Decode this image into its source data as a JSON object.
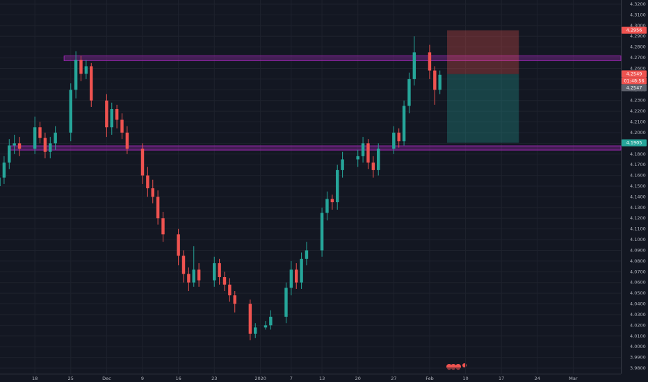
{
  "chart_data": {
    "type": "candlestick",
    "x": [
      -7,
      -6,
      -5,
      -4,
      -3,
      0,
      1,
      2,
      3,
      4,
      7,
      8,
      9,
      10,
      11,
      14,
      15,
      16,
      17,
      18,
      21,
      22,
      23,
      24,
      25,
      28,
      29,
      30,
      31,
      32,
      35,
      36,
      37,
      38,
      39,
      42,
      43,
      45,
      46,
      49,
      50,
      51,
      52,
      53,
      56,
      57,
      58,
      59,
      60,
      63,
      64,
      65,
      66,
      67,
      70,
      71,
      72,
      73,
      74,
      77,
      78,
      79
    ],
    "open": [
      4.15,
      4.158,
      4.172,
      4.188,
      4.19,
      4.185,
      4.205,
      4.195,
      4.182,
      4.19,
      4.2,
      4.24,
      4.268,
      4.255,
      4.262,
      4.23,
      4.205,
      4.222,
      4.212,
      4.2,
      4.185,
      4.16,
      4.148,
      4.14,
      4.12,
      4.105,
      4.085,
      4.068,
      4.06,
      4.072,
      4.062,
      4.078,
      4.065,
      4.058,
      4.048,
      4.04,
      4.012,
      4.018,
      4.02,
      4.028,
      4.055,
      4.072,
      4.06,
      4.082,
      4.09,
      4.125,
      4.138,
      4.135,
      4.165,
      4.175,
      4.178,
      4.19,
      4.172,
      4.165,
      4.185,
      4.2,
      4.192,
      4.225,
      4.25,
      4.275,
      4.258,
      4.24
    ],
    "high": [
      4.162,
      4.178,
      4.194,
      4.198,
      4.196,
      4.215,
      4.21,
      4.2,
      4.196,
      4.206,
      4.246,
      4.276,
      4.272,
      4.268,
      4.265,
      4.236,
      4.228,
      4.226,
      4.218,
      4.206,
      4.19,
      4.168,
      4.156,
      4.146,
      4.126,
      4.11,
      4.09,
      4.074,
      4.094,
      4.078,
      4.084,
      4.082,
      4.07,
      4.064,
      4.052,
      4.044,
      4.022,
      4.024,
      4.034,
      4.06,
      4.08,
      4.078,
      4.088,
      4.098,
      4.13,
      4.145,
      4.142,
      4.17,
      4.182,
      4.184,
      4.196,
      4.194,
      4.178,
      4.19,
      4.206,
      4.204,
      4.23,
      4.256,
      4.29,
      4.282,
      4.262,
      4.258
    ],
    "low": [
      4.138,
      4.152,
      4.166,
      4.18,
      4.178,
      4.18,
      4.19,
      4.176,
      4.176,
      4.184,
      4.192,
      4.232,
      4.248,
      4.25,
      4.224,
      4.196,
      4.198,
      4.204,
      4.194,
      4.18,
      4.152,
      4.14,
      4.134,
      4.114,
      4.098,
      4.076,
      4.06,
      4.052,
      4.056,
      4.056,
      4.056,
      4.058,
      4.052,
      4.042,
      4.032,
      4.006,
      4.008,
      4.016,
      4.016,
      4.022,
      4.048,
      4.054,
      4.054,
      4.076,
      4.084,
      4.118,
      4.128,
      4.128,
      4.158,
      4.168,
      4.172,
      4.166,
      4.158,
      4.16,
      4.18,
      4.186,
      4.188,
      4.218,
      4.244,
      4.25,
      4.226,
      4.236
    ],
    "close": [
      4.158,
      4.172,
      4.188,
      4.19,
      4.185,
      4.205,
      4.195,
      4.182,
      4.19,
      4.2,
      4.24,
      4.268,
      4.255,
      4.262,
      4.23,
      4.205,
      4.222,
      4.212,
      4.2,
      4.185,
      4.16,
      4.148,
      4.14,
      4.12,
      4.105,
      4.085,
      4.068,
      4.06,
      4.072,
      4.062,
      4.078,
      4.065,
      4.058,
      4.048,
      4.04,
      4.012,
      4.018,
      4.02,
      4.028,
      4.055,
      4.072,
      4.06,
      4.082,
      4.09,
      4.125,
      4.138,
      4.135,
      4.165,
      4.175,
      4.178,
      4.19,
      4.172,
      4.165,
      4.185,
      4.2,
      4.192,
      4.225,
      4.25,
      4.275,
      4.258,
      4.24,
      4.254
    ],
    "up_color": "#26a69a",
    "down_color": "#ef5350",
    "grid": true,
    "xlim": [
      -6.8,
      114.3
    ],
    "ylim": [
      3.9748,
      4.3239
    ],
    "xticks": [
      {
        "value": 0,
        "label": "18"
      },
      {
        "value": 7,
        "label": "25"
      },
      {
        "value": 14,
        "label": "Dec"
      },
      {
        "value": 21,
        "label": "9"
      },
      {
        "value": 28,
        "label": "16"
      },
      {
        "value": 35,
        "label": "23"
      },
      {
        "value": 44,
        "label": "2020"
      },
      {
        "value": 50,
        "label": "7"
      },
      {
        "value": 56,
        "label": "13"
      },
      {
        "value": 63,
        "label": "20"
      },
      {
        "value": 70,
        "label": "27"
      },
      {
        "value": 77,
        "label": "Feb"
      },
      {
        "value": 84,
        "label": "10"
      },
      {
        "value": 91,
        "label": "17"
      },
      {
        "value": 98,
        "label": "24"
      },
      {
        "value": 105,
        "label": "Mar"
      }
    ],
    "yticks": [
      {
        "value": 4.32,
        "label": "4.3200"
      },
      {
        "value": 4.31,
        "label": "4.3100"
      },
      {
        "value": 4.3,
        "label": "4.3000"
      },
      {
        "value": 4.29,
        "label": "4.2900"
      },
      {
        "value": 4.28,
        "label": "4.2800"
      },
      {
        "value": 4.27,
        "label": "4.2700"
      },
      {
        "value": 4.26,
        "label": "4.2600"
      },
      {
        "value": 4.25,
        "label": "4.2500"
      },
      {
        "value": 4.24,
        "label": "4.2400"
      },
      {
        "value": 4.23,
        "label": "4.2300"
      },
      {
        "value": 4.22,
        "label": "4.2200"
      },
      {
        "value": 4.21,
        "label": "4.2100"
      },
      {
        "value": 4.2,
        "label": "4.2000"
      },
      {
        "value": 4.19,
        "label": "4.1900"
      },
      {
        "value": 4.18,
        "label": "4.1800"
      },
      {
        "value": 4.17,
        "label": "4.1700"
      },
      {
        "value": 4.16,
        "label": "4.1600"
      },
      {
        "value": 4.15,
        "label": "4.1500"
      },
      {
        "value": 4.14,
        "label": "4.1400"
      },
      {
        "value": 4.13,
        "label": "4.1300"
      },
      {
        "value": 4.12,
        "label": "4.1200"
      },
      {
        "value": 4.11,
        "label": "4.1100"
      },
      {
        "value": 4.1,
        "label": "4.1000"
      },
      {
        "value": 4.09,
        "label": "4.0900"
      },
      {
        "value": 4.08,
        "label": "4.0800"
      },
      {
        "value": 4.07,
        "label": "4.0700"
      },
      {
        "value": 4.06,
        "label": "4.0600"
      },
      {
        "value": 4.05,
        "label": "4.0500"
      },
      {
        "value": 4.04,
        "label": "4.0400"
      },
      {
        "value": 4.03,
        "label": "4.0300"
      },
      {
        "value": 4.02,
        "label": "4.0200"
      },
      {
        "value": 4.01,
        "label": "4.0100"
      },
      {
        "value": 4.0,
        "label": "4.0000"
      },
      {
        "value": 3.99,
        "label": "3.9900"
      },
      {
        "value": 3.98,
        "label": "3.9800"
      }
    ],
    "zones": [
      {
        "low": 4.2672,
        "high": 4.2717,
        "start": 5.7,
        "color": "#9c27b0"
      },
      {
        "low": 4.1837,
        "high": 4.1876,
        "start": -4.8,
        "color": "#9c27b0"
      }
    ],
    "position": {
      "stop": 4.2956,
      "entry": 4.2547,
      "target": 4.1905,
      "start": 80.4,
      "end": 94.4,
      "loss_color": "#ef5350",
      "profit_color": "#26a69a"
    },
    "price_labels": [
      {
        "value": 4.2956,
        "label": "4.2956",
        "color": "#ef5350"
      },
      {
        "value": 4.2549,
        "label": "4.2549",
        "color": "#ef5350"
      },
      {
        "value": 4.2547,
        "label": "4.2547",
        "color": "#5d606b"
      },
      {
        "value": 4.1905,
        "label": "4.1905",
        "color": "#26a69a"
      }
    ],
    "countdown": "01:48:56"
  }
}
